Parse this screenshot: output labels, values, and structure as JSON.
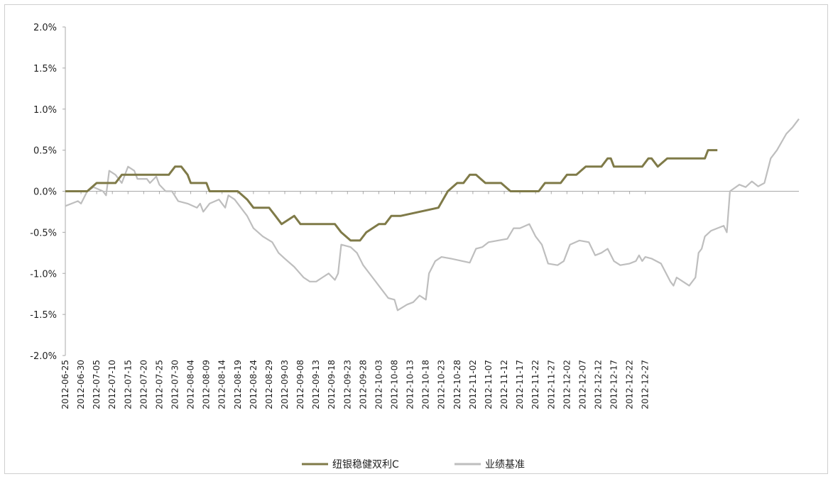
{
  "chart_data": {
    "type": "line",
    "title": "",
    "xlabel": "",
    "ylabel": "",
    "ylim": [
      -2.0,
      2.0
    ],
    "y_ticks": [
      "2.0%",
      "1.5%",
      "1.0%",
      "0.5%",
      "0.0%",
      "-0.5%",
      "-1.0%",
      "-1.5%",
      "-2.0%"
    ],
    "x_tick_labels": [
      "2012-06-25",
      "2012-06-30",
      "2012-07-05",
      "2012-07-10",
      "2012-07-15",
      "2012-07-20",
      "2012-07-25",
      "2012-07-30",
      "2012-08-04",
      "2012-08-09",
      "2012-08-14",
      "2012-08-19",
      "2012-08-24",
      "2012-08-29",
      "2012-09-03",
      "2012-09-08",
      "2012-09-13",
      "2012-09-18",
      "2012-09-23",
      "2012-09-28",
      "2012-10-03",
      "2012-10-08",
      "2012-10-13",
      "2012-10-18",
      "2012-10-23",
      "2012-10-28",
      "2012-11-02",
      "2012-11-07",
      "2012-11-12",
      "2012-11-17",
      "2012-11-22",
      "2012-11-27",
      "2012-12-02",
      "2012-12-07",
      "2012-12-12",
      "2012-12-17",
      "2012-12-22",
      "2012-12-27"
    ],
    "legend_position": "bottom",
    "series": [
      {
        "name": "纽银稳健双利C",
        "color": "#7f7a48",
        "points": [
          [
            "2012-06-25",
            0.0
          ],
          [
            "2012-07-02",
            0.0
          ],
          [
            "2012-07-05",
            0.1
          ],
          [
            "2012-07-11",
            0.1
          ],
          [
            "2012-07-13",
            0.2
          ],
          [
            "2012-07-28",
            0.2
          ],
          [
            "2012-07-30",
            0.3
          ],
          [
            "2012-08-01",
            0.3
          ],
          [
            "2012-08-03",
            0.2
          ],
          [
            "2012-08-04",
            0.1
          ],
          [
            "2012-08-09",
            0.1
          ],
          [
            "2012-08-10",
            0.0
          ],
          [
            "2012-08-19",
            0.0
          ],
          [
            "2012-08-22",
            -0.1
          ],
          [
            "2012-08-24",
            -0.2
          ],
          [
            "2012-08-29",
            -0.2
          ],
          [
            "2012-08-31",
            -0.3
          ],
          [
            "2012-09-02",
            -0.4
          ],
          [
            "2012-09-06",
            -0.3
          ],
          [
            "2012-09-08",
            -0.4
          ],
          [
            "2012-09-19",
            -0.4
          ],
          [
            "2012-09-21",
            -0.5
          ],
          [
            "2012-09-24",
            -0.6
          ],
          [
            "2012-09-27",
            -0.6
          ],
          [
            "2012-09-29",
            -0.5
          ],
          [
            "2012-10-03",
            -0.4
          ],
          [
            "2012-10-05",
            -0.4
          ],
          [
            "2012-10-07",
            -0.3
          ],
          [
            "2012-10-10",
            -0.3
          ],
          [
            "2012-10-22",
            -0.2
          ],
          [
            "2012-10-25",
            0.0
          ],
          [
            "2012-10-28",
            0.1
          ],
          [
            "2012-10-30",
            0.1
          ],
          [
            "2012-11-01",
            0.2
          ],
          [
            "2012-11-03",
            0.2
          ],
          [
            "2012-11-06",
            0.1
          ],
          [
            "2012-11-11",
            0.1
          ],
          [
            "2012-11-14",
            0.0
          ],
          [
            "2012-11-23",
            0.0
          ],
          [
            "2012-11-25",
            0.1
          ],
          [
            "2012-11-30",
            0.1
          ],
          [
            "2012-12-02",
            0.2
          ],
          [
            "2012-12-05",
            0.2
          ],
          [
            "2012-12-08",
            0.3
          ],
          [
            "2012-12-13",
            0.3
          ],
          [
            "2012-12-15",
            0.4
          ],
          [
            "2012-12-16",
            0.4
          ],
          [
            "2012-12-17",
            0.3
          ],
          [
            "2012-12-26",
            0.3
          ],
          [
            "2012-12-28",
            0.4
          ],
          [
            "2012-12-29",
            0.4
          ],
          [
            "2012-12-31",
            0.3
          ],
          [
            "2013-01-03",
            0.4
          ],
          [
            "2013-01-15",
            0.4
          ],
          [
            "2013-01-16",
            0.5
          ],
          [
            "2013-01-19",
            0.5
          ]
        ]
      },
      {
        "name": "业绩基准",
        "color": "#bebebe",
        "points": [
          [
            "2012-06-25",
            -0.18
          ],
          [
            "2012-06-27",
            -0.15
          ],
          [
            "2012-06-29",
            -0.12
          ],
          [
            "2012-06-30",
            -0.15
          ],
          [
            "2012-07-02",
            0.0
          ],
          [
            "2012-07-04",
            0.05
          ],
          [
            "2012-07-07",
            0.0
          ],
          [
            "2012-07-08",
            -0.05
          ],
          [
            "2012-07-09",
            0.25
          ],
          [
            "2012-07-11",
            0.2
          ],
          [
            "2012-07-13",
            0.1
          ],
          [
            "2012-07-15",
            0.3
          ],
          [
            "2012-07-17",
            0.25
          ],
          [
            "2012-07-18",
            0.15
          ],
          [
            "2012-07-21",
            0.15
          ],
          [
            "2012-07-22",
            0.1
          ],
          [
            "2012-07-24",
            0.18
          ],
          [
            "2012-07-25",
            0.08
          ],
          [
            "2012-07-27",
            0.0
          ],
          [
            "2012-07-29",
            0.0
          ],
          [
            "2012-07-31",
            -0.12
          ],
          [
            "2012-08-03",
            -0.15
          ],
          [
            "2012-08-06",
            -0.2
          ],
          [
            "2012-08-07",
            -0.15
          ],
          [
            "2012-08-08",
            -0.25
          ],
          [
            "2012-08-10",
            -0.15
          ],
          [
            "2012-08-13",
            -0.1
          ],
          [
            "2012-08-14",
            -0.15
          ],
          [
            "2012-08-15",
            -0.2
          ],
          [
            "2012-08-16",
            -0.05
          ],
          [
            "2012-08-18",
            -0.1
          ],
          [
            "2012-08-21",
            -0.25
          ],
          [
            "2012-08-22",
            -0.3
          ],
          [
            "2012-08-24",
            -0.45
          ],
          [
            "2012-08-27",
            -0.55
          ],
          [
            "2012-08-30",
            -0.62
          ],
          [
            "2012-09-01",
            -0.75
          ],
          [
            "2012-09-03",
            -0.82
          ],
          [
            "2012-09-06",
            -0.92
          ],
          [
            "2012-09-09",
            -1.05
          ],
          [
            "2012-09-11",
            -1.1
          ],
          [
            "2012-09-13",
            -1.1
          ],
          [
            "2012-09-15",
            -1.05
          ],
          [
            "2012-09-17",
            -1.0
          ],
          [
            "2012-09-19",
            -1.08
          ],
          [
            "2012-09-20",
            -1.0
          ],
          [
            "2012-09-21",
            -0.65
          ],
          [
            "2012-09-24",
            -0.68
          ],
          [
            "2012-09-26",
            -0.75
          ],
          [
            "2012-09-28",
            -0.9
          ],
          [
            "2012-10-01",
            -1.05
          ],
          [
            "2012-10-04",
            -1.2
          ],
          [
            "2012-10-06",
            -1.3
          ],
          [
            "2012-10-08",
            -1.32
          ],
          [
            "2012-10-09",
            -1.45
          ],
          [
            "2012-10-12",
            -1.38
          ],
          [
            "2012-10-14",
            -1.35
          ],
          [
            "2012-10-16",
            -1.27
          ],
          [
            "2012-10-18",
            -1.32
          ],
          [
            "2012-10-19",
            -1.0
          ],
          [
            "2012-10-21",
            -0.85
          ],
          [
            "2012-10-23",
            -0.8
          ],
          [
            "2012-10-26",
            -0.82
          ],
          [
            "2012-11-01",
            -0.87
          ],
          [
            "2012-11-03",
            -0.7
          ],
          [
            "2012-11-05",
            -0.68
          ],
          [
            "2012-11-07",
            -0.62
          ],
          [
            "2012-11-10",
            -0.6
          ],
          [
            "2012-11-13",
            -0.58
          ],
          [
            "2012-11-15",
            -0.45
          ],
          [
            "2012-11-17",
            -0.45
          ],
          [
            "2012-11-20",
            -0.4
          ],
          [
            "2012-11-22",
            -0.55
          ],
          [
            "2012-11-24",
            -0.65
          ],
          [
            "2012-11-26",
            -0.88
          ],
          [
            "2012-11-29",
            -0.9
          ],
          [
            "2012-12-01",
            -0.85
          ],
          [
            "2012-12-03",
            -0.65
          ],
          [
            "2012-12-06",
            -0.6
          ],
          [
            "2012-12-09",
            -0.62
          ],
          [
            "2012-12-11",
            -0.78
          ],
          [
            "2012-12-13",
            -0.75
          ],
          [
            "2012-12-15",
            -0.7
          ],
          [
            "2012-12-17",
            -0.85
          ],
          [
            "2012-12-19",
            -0.9
          ],
          [
            "2012-12-22",
            -0.88
          ],
          [
            "2012-12-24",
            -0.85
          ],
          [
            "2012-12-25",
            -0.78
          ],
          [
            "2012-12-26",
            -0.85
          ],
          [
            "2012-12-27",
            -0.8
          ],
          [
            "2012-12-29",
            -0.82
          ],
          [
            "2013-01-01",
            -0.88
          ],
          [
            "2013-01-04",
            -1.1
          ],
          [
            "2013-01-05",
            -1.15
          ],
          [
            "2013-01-06",
            -1.05
          ],
          [
            "2013-01-08",
            -1.1
          ],
          [
            "2013-01-10",
            -1.15
          ],
          [
            "2013-01-12",
            -1.05
          ],
          [
            "2013-01-13",
            -0.75
          ],
          [
            "2013-01-14",
            -0.7
          ],
          [
            "2013-01-15",
            -0.55
          ],
          [
            "2013-01-17",
            -0.48
          ],
          [
            "2013-01-19",
            -0.45
          ],
          [
            "2013-01-21",
            -0.42
          ],
          [
            "2013-01-22",
            -0.5
          ],
          [
            "2013-01-23",
            0.0
          ],
          [
            "2013-01-26",
            0.08
          ],
          [
            "2013-01-28",
            0.05
          ],
          [
            "2013-01-30",
            0.12
          ],
          [
            "2013-02-01",
            0.06
          ],
          [
            "2013-02-03",
            0.1
          ],
          [
            "2013-02-05",
            0.4
          ],
          [
            "2013-02-07",
            0.5
          ],
          [
            "2013-02-10",
            0.7
          ],
          [
            "2013-02-12",
            0.78
          ],
          [
            "2013-02-14",
            0.88
          ]
        ]
      }
    ]
  }
}
